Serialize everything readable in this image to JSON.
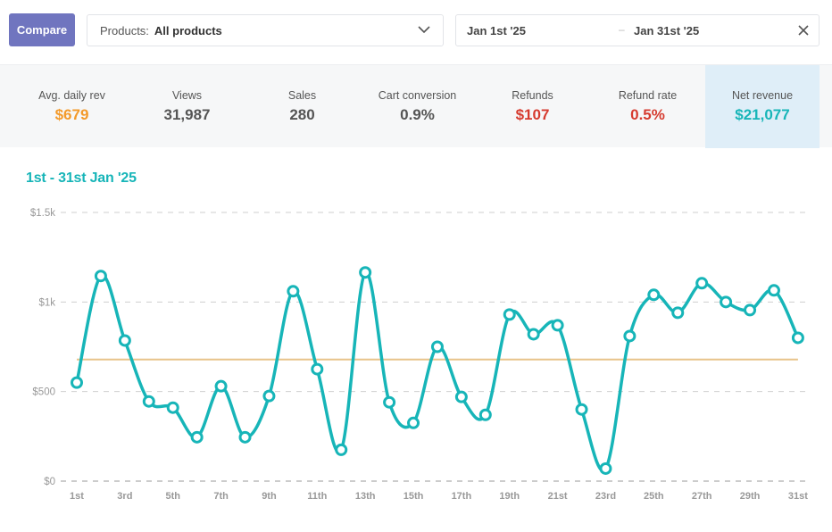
{
  "toolbar": {
    "compare_label": "Compare",
    "products_label": "Products:",
    "products_value": "All products",
    "date_start": "Jan 1st '25",
    "date_separator": "–",
    "date_end": "Jan 31st '25"
  },
  "stats": [
    {
      "label": "Avg. daily rev",
      "value": "$679",
      "color": "#f39a2a"
    },
    {
      "label": "Views",
      "value": "31,987",
      "color": "#555555"
    },
    {
      "label": "Sales",
      "value": "280",
      "color": "#555555"
    },
    {
      "label": "Cart conversion",
      "value": "0.9%",
      "color": "#555555"
    },
    {
      "label": "Refunds",
      "value": "$107",
      "color": "#d63b2f"
    },
    {
      "label": "Refund rate",
      "value": "0.5%",
      "color": "#d63b2f"
    },
    {
      "label": "Net revenue",
      "value": "$21,077",
      "color": "#17b5b8"
    }
  ],
  "colors": {
    "accent": "#17b5b8",
    "compare_button": "#7075bf",
    "average_line": "#e8c48a"
  },
  "chart_data": {
    "type": "line",
    "title": "1st - 31st Jan '25",
    "xlabel": "",
    "ylabel": "",
    "ylim": [
      0,
      1500
    ],
    "y_ticks": [
      {
        "value": 0,
        "label": "$0"
      },
      {
        "value": 500,
        "label": "$500"
      },
      {
        "value": 1000,
        "label": "$1k"
      },
      {
        "value": 1500,
        "label": "$1.5k"
      }
    ],
    "grid": true,
    "categories": [
      "1st",
      "2nd",
      "3rd",
      "4th",
      "5th",
      "6th",
      "7th",
      "8th",
      "9th",
      "10th",
      "11th",
      "12th",
      "13th",
      "14th",
      "15th",
      "16th",
      "17th",
      "18th",
      "19th",
      "20th",
      "21st",
      "22nd",
      "23rd",
      "24th",
      "25th",
      "26th",
      "27th",
      "28th",
      "29th",
      "30th",
      "31st"
    ],
    "x_tick_labels": [
      "1st",
      "3rd",
      "5th",
      "7th",
      "9th",
      "11th",
      "13th",
      "15th",
      "17th",
      "19th",
      "21st",
      "23rd",
      "25th",
      "27th",
      "29th",
      "31st"
    ],
    "series": [
      {
        "name": "Net revenue",
        "values": [
          550,
          1145,
          785,
          445,
          410,
          245,
          530,
          245,
          475,
          1060,
          625,
          175,
          1165,
          440,
          325,
          750,
          470,
          370,
          930,
          820,
          870,
          400,
          70,
          810,
          1040,
          940,
          1105,
          1000,
          955,
          1065,
          800
        ]
      }
    ],
    "average": {
      "name": "Avg. daily rev",
      "value": 679
    }
  }
}
